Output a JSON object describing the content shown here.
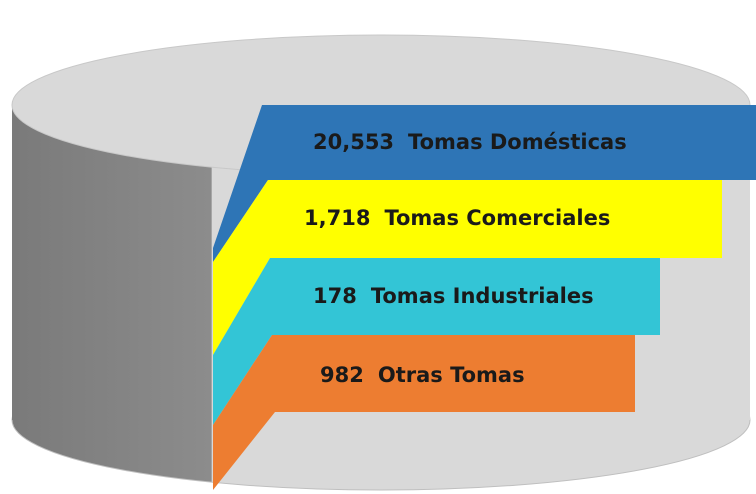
{
  "items": [
    {
      "count": "20,553",
      "label": "Tomas Domésticas",
      "color": "#2e75b6"
    },
    {
      "count": "1,718",
      "label": "Tomas Comerciales",
      "color": "#ffff00"
    },
    {
      "count": "178",
      "label": "Tomas Industriales",
      "color": "#33c5d6"
    },
    {
      "count": "982",
      "label": "Otras Tomas",
      "color": "#ed7d31"
    }
  ]
}
